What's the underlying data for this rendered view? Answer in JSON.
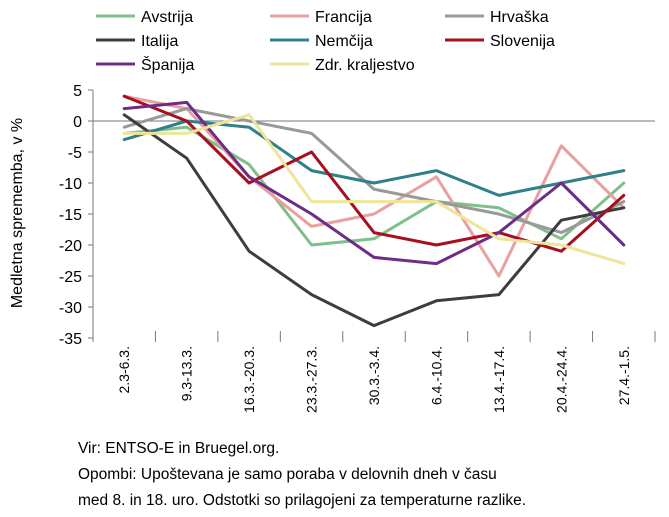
{
  "chart_data": {
    "type": "line",
    "title": "",
    "xlabel": "",
    "ylabel": "Medletna sprememba, v %",
    "ylim": [
      -35,
      5
    ],
    "yticks": [
      5,
      0,
      -5,
      -10,
      -15,
      -20,
      -25,
      -30,
      -35
    ],
    "grid": false,
    "legend_position": "top",
    "categories": [
      "2.3-6.3.",
      "9.3-13.3.",
      "16.3.-20.3.",
      "23.3.-27.3.",
      "30.3.-3.4.",
      "6.4.-10.4.",
      "13.4.-17.4.",
      "20.4.-24.4.",
      "27.4.-1.5."
    ],
    "series": [
      {
        "name": "Avstrija",
        "color": "#7fbf8a",
        "values": [
          -2,
          -1,
          -7,
          -20,
          -19,
          -13,
          -14,
          -19,
          -10
        ]
      },
      {
        "name": "Francija",
        "color": "#e8a0a0",
        "values": [
          4,
          2,
          -9,
          -17,
          -15,
          -9,
          -25,
          -4,
          -14
        ]
      },
      {
        "name": "Hrvaška",
        "color": "#999999",
        "values": [
          -1,
          2,
          0,
          -2,
          -11,
          -13,
          -15,
          -18,
          -13
        ]
      },
      {
        "name": "Italija",
        "color": "#3d3d3d",
        "values": [
          1,
          -6,
          -21,
          -28,
          -33,
          -29,
          -28,
          -16,
          -14
        ]
      },
      {
        "name": "Nemčija",
        "color": "#2f8088",
        "values": [
          -3,
          0,
          -1,
          -8,
          -10,
          -8,
          -12,
          -10,
          -8
        ]
      },
      {
        "name": "Slovenija",
        "color": "#a50f1f",
        "values": [
          4,
          0,
          -10,
          -5,
          -18,
          -20,
          -18,
          -21,
          -12
        ]
      },
      {
        "name": "Španija",
        "color": "#6d2d86",
        "values": [
          2,
          3,
          -9,
          -15,
          -22,
          -23,
          -18,
          -10,
          -20
        ]
      },
      {
        "name": "Zdr. kraljestvo",
        "color": "#eee59a",
        "values": [
          -2,
          -2,
          1,
          -13,
          -13,
          -13,
          -19,
          -20,
          -23
        ]
      }
    ]
  },
  "notes": {
    "source": "Vir: ENTSO-E in Bruegel.org.",
    "line1": "Opombi: Upoštevana je samo poraba v delovnih dneh v času",
    "line2": "med 8. in 18. uro. Odstotki so prilagojeni za temperaturne razlike."
  }
}
